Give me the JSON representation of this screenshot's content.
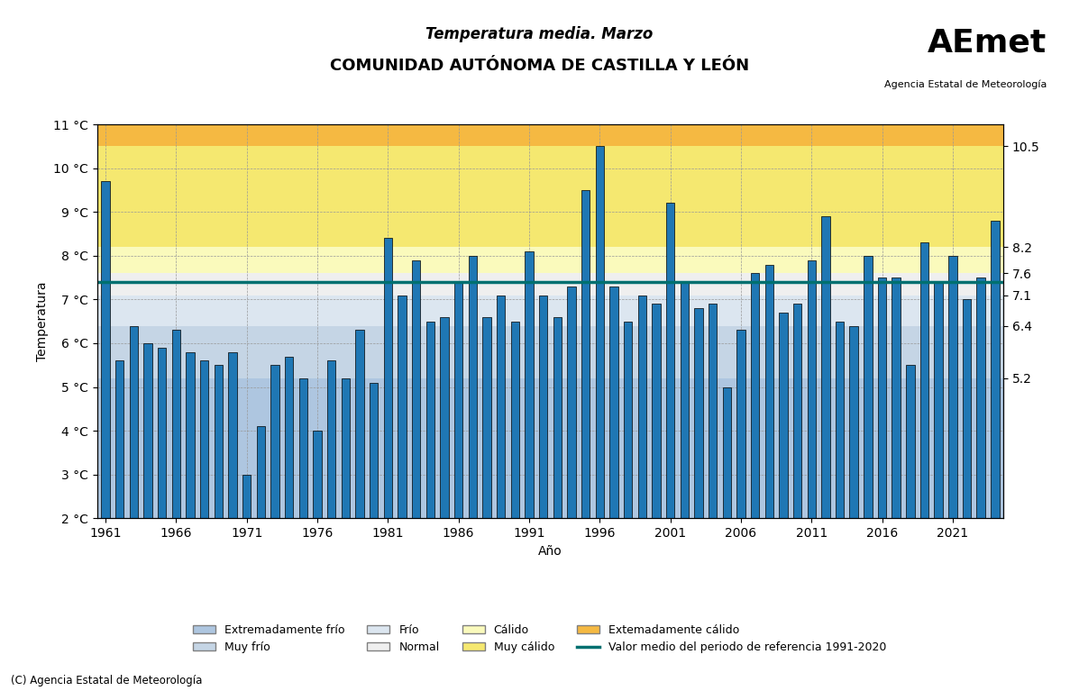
{
  "chart_data": {
    "type": "bar",
    "title": "Temperatura media. Marzo",
    "subtitle": "COMUNIDAD AUTÓNOMA DE CASTILLA Y LEÓN",
    "x_label": "Año",
    "y_label": "Temperatura",
    "x": [
      1961,
      1962,
      1963,
      1964,
      1965,
      1966,
      1967,
      1968,
      1969,
      1970,
      1971,
      1972,
      1973,
      1974,
      1975,
      1976,
      1977,
      1978,
      1979,
      1980,
      1981,
      1982,
      1983,
      1984,
      1985,
      1986,
      1987,
      1988,
      1989,
      1990,
      1991,
      1992,
      1993,
      1994,
      1995,
      1996,
      1997,
      1998,
      1999,
      2000,
      2001,
      2002,
      2003,
      2004,
      2005,
      2006,
      2007,
      2008,
      2009,
      2010,
      2011,
      2012,
      2013,
      2014,
      2015,
      2016,
      2017,
      2018,
      2019,
      2020,
      2021,
      2022,
      2023,
      2024
    ],
    "values": [
      9.7,
      5.6,
      6.4,
      6.0,
      5.9,
      6.3,
      5.8,
      5.6,
      5.5,
      5.8,
      3.0,
      4.1,
      5.5,
      5.7,
      5.2,
      4.0,
      5.6,
      5.2,
      6.3,
      5.1,
      8.4,
      7.1,
      7.9,
      6.5,
      6.6,
      7.4,
      8.0,
      6.6,
      7.1,
      6.5,
      8.1,
      7.1,
      6.6,
      7.3,
      9.5,
      10.5,
      7.3,
      6.5,
      7.1,
      6.9,
      9.2,
      7.4,
      6.8,
      6.9,
      5.0,
      6.3,
      7.6,
      7.8,
      6.7,
      6.9,
      7.9,
      8.9,
      6.5,
      6.4,
      8.0,
      7.5,
      7.5,
      5.5,
      8.3,
      7.4,
      8.0,
      7.0,
      7.5,
      8.8
    ],
    "xlim": [
      1960.4,
      2024.6
    ],
    "xticks": [
      1961,
      1966,
      1971,
      1976,
      1981,
      1986,
      1991,
      1996,
      2001,
      2006,
      2011,
      2016,
      2021
    ],
    "ylim": [
      2.0,
      11.0
    ],
    "yticks": [
      {
        "value": 2,
        "label": "2 °C"
      },
      {
        "value": 3,
        "label": "3 °C"
      },
      {
        "value": 4,
        "label": "4 °C"
      },
      {
        "value": 5,
        "label": "5 °C"
      },
      {
        "value": 6,
        "label": "6 °C"
      },
      {
        "value": 7,
        "label": "7 °C"
      },
      {
        "value": 8,
        "label": "8 °C"
      },
      {
        "value": 9,
        "label": "9 °C"
      },
      {
        "value": 10,
        "label": "10 °C"
      },
      {
        "value": 11,
        "label": "11 °C"
      }
    ],
    "y2lim": [
      2.0,
      11.0
    ],
    "y2ticks": [
      10.5,
      8.2,
      7.6,
      7.1,
      6.4,
      5.2
    ],
    "bands": [
      {
        "name": "Extremadamente frío",
        "from": 2.0,
        "to": 5.2,
        "color": "#aec6e0"
      },
      {
        "name": "Muy frío",
        "from": 5.2,
        "to": 6.4,
        "color": "#c5d5e5"
      },
      {
        "name": "Frío",
        "from": 6.4,
        "to": 7.1,
        "color": "#dce6f0"
      },
      {
        "name": "Normal",
        "from": 7.1,
        "to": 7.6,
        "color": "#efefef"
      },
      {
        "name": "Cálido",
        "from": 7.6,
        "to": 8.2,
        "color": "#fafabc"
      },
      {
        "name": "Muy cálido",
        "from": 8.2,
        "to": 10.5,
        "color": "#f5e870"
      },
      {
        "name": "Extemadamente cálido",
        "from": 10.5,
        "to": 11.0,
        "color": "#f5b942"
      }
    ],
    "reference_line": {
      "value": 7.4,
      "name": "Valor medio del periodo de referencia 1991-2020",
      "color": "#007070"
    },
    "annotations": [
      "AEmet",
      "Agencia Estatal de Meteorología",
      "(C) Agencia Estatal de Meteorología"
    ],
    "grid": true,
    "legend": "lower center"
  }
}
